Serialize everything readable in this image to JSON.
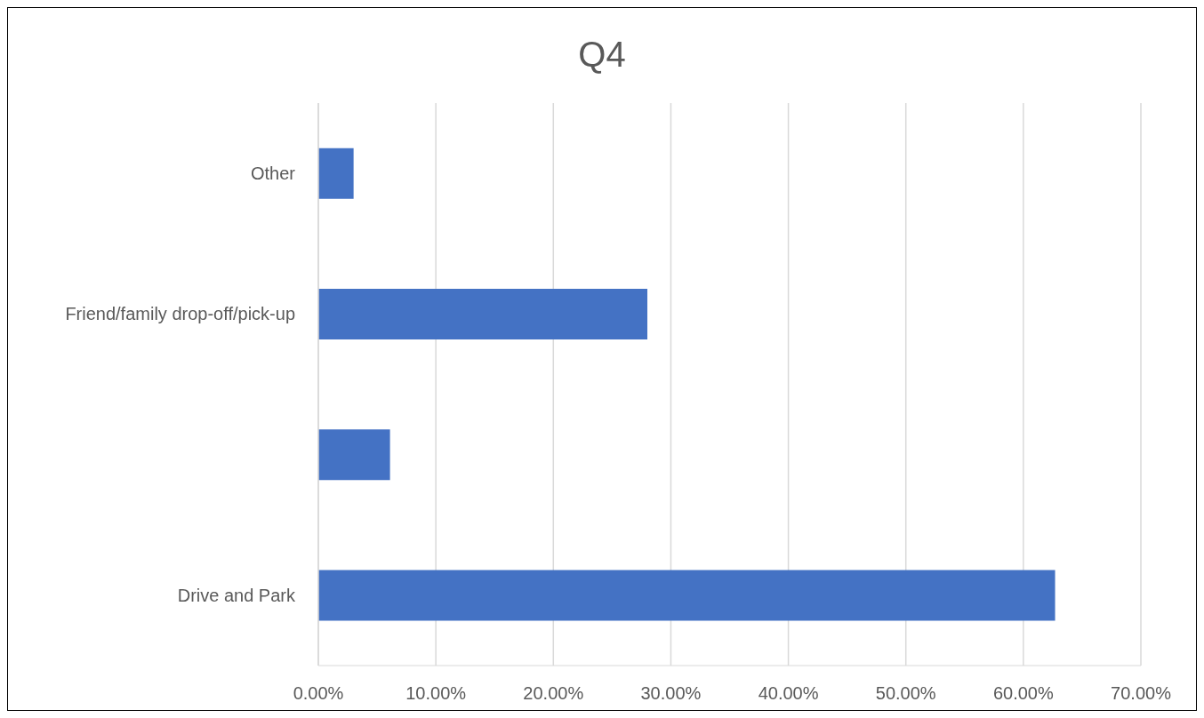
{
  "chart_data": {
    "type": "bar",
    "orientation": "horizontal",
    "title": "Q4",
    "categories": [
      "Other",
      "Friend/family drop-off/pick-up",
      null,
      "Drive and Park"
    ],
    "values": [
      3.0,
      28.0,
      6.1,
      62.7
    ],
    "color": "#4472c4",
    "xlim": [
      0,
      70
    ],
    "xticks": [
      {
        "value": 0,
        "label": "0.00%"
      },
      {
        "value": 10,
        "label": "10.00%"
      },
      {
        "value": 20,
        "label": "20.00%"
      },
      {
        "value": 30,
        "label": "30.00%"
      },
      {
        "value": 40,
        "label": "40.00%"
      },
      {
        "value": 50,
        "label": "50.00%"
      },
      {
        "value": 60,
        "label": "60.00%"
      },
      {
        "value": 70,
        "label": "70.00%"
      }
    ],
    "grid": "x",
    "legend": false
  }
}
